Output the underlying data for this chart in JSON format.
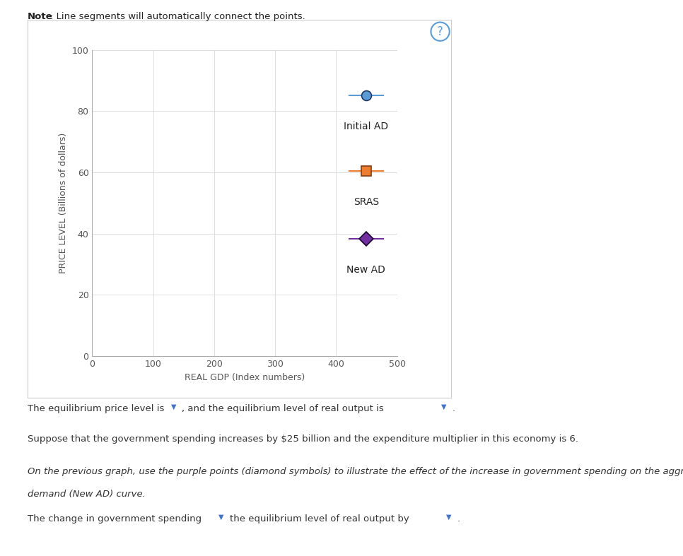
{
  "outer_bg": "#ffffff",
  "panel_bg": "#ffffff",
  "panel_border_color": "#cccccc",
  "plot_area_bg": "#ffffff",
  "xlabel": "REAL GDP (Index numbers)",
  "ylabel": "PRICE LEVEL (Billions of dollars)",
  "xlim": [
    0,
    500
  ],
  "ylim": [
    0,
    100
  ],
  "xticks": [
    0,
    100,
    200,
    300,
    400,
    500
  ],
  "yticks": [
    0,
    20,
    40,
    60,
    80,
    100
  ],
  "legend_items": [
    {
      "label": "Initial AD",
      "color": "#5b9bd5",
      "marker": "o",
      "markersize": 10,
      "mec": "#1f3864"
    },
    {
      "label": "SRAS",
      "color": "#ed7d31",
      "marker": "s",
      "markersize": 10,
      "mec": "#843c0c"
    },
    {
      "label": "New AD",
      "color": "#7030a0",
      "marker": "D",
      "markersize": 10,
      "mec": "#1a0030"
    }
  ],
  "note_bold": "Note",
  "note_rest": ": Line segments will automatically connect the points.",
  "text1": "The equilibrium price level is",
  "text1_mid": ", and the equilibrium level of real output is",
  "text1_end": ".",
  "text2": "Suppose that the government spending increases by $25 billion and the expenditure multiplier in this economy is 6.",
  "text3_italic": "On the previous graph, use the purple points (diamond symbols) to illustrate the effect of the increase in government spending on the aggregate\ndemand (New AD) curve.",
  "text4": "The change in government spending",
  "text4_mid": "the equilibrium level of real output by",
  "text4_end": ".",
  "question_mark_color": "#5b9bd5",
  "grid_color": "#d9d9d9",
  "axis_spine_color": "#aaaaaa",
  "tick_label_color": "#555555",
  "font_size_axis_label": 9,
  "font_size_tick": 9,
  "font_size_legend": 10,
  "font_size_note": 9.5,
  "font_size_body": 9.5,
  "dropdown_color": "#4472c4"
}
